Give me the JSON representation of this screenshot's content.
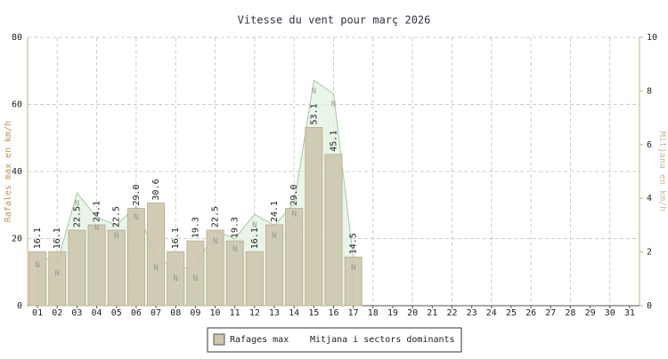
{
  "chart_data": {
    "type": "bar",
    "title": "Vitesse du vent pour marҫ 2026",
    "y_label": "Rafales max en km/h",
    "y2_label": "Mitjana en km/h",
    "categories": [
      "01",
      "02",
      "03",
      "04",
      "05",
      "06",
      "07",
      "08",
      "09",
      "10",
      "11",
      "12",
      "13",
      "14",
      "15",
      "16",
      "17",
      "18",
      "19",
      "20",
      "21",
      "22",
      "23",
      "24",
      "25",
      "26",
      "27",
      "28",
      "29",
      "30",
      "31"
    ],
    "series": [
      {
        "name": "Rafages max",
        "type": "bar",
        "color": "#cdc6ad",
        "values": [
          16.1,
          16.1,
          22.5,
          24.1,
          22.5,
          29.0,
          30.6,
          16.1,
          19.3,
          22.5,
          19.3,
          16.1,
          24.1,
          29.0,
          53.1,
          45.1,
          14.5,
          null,
          null,
          null,
          null,
          null,
          null,
          null,
          null,
          null,
          null,
          null,
          null,
          null,
          null
        ],
        "value_labels": [
          "16.1",
          "16.1",
          "22.5",
          "24.1",
          "22.5",
          "29.0",
          "30.6",
          "16.1",
          "19.3",
          "22.5",
          "19.3",
          "16.1",
          "24.1",
          "29.0",
          "53.1",
          "45.1",
          "14.5",
          null,
          null,
          null,
          null,
          null,
          null,
          null,
          null,
          null,
          null,
          null,
          null,
          null,
          null
        ]
      },
      {
        "name": "Mitjana i sectors dominants",
        "type": "area",
        "axis": "y2",
        "color": "#8fc08f",
        "values": [
          1.9,
          1.6,
          4.2,
          3.3,
          3.0,
          3.7,
          1.8,
          1.4,
          1.4,
          2.8,
          2.5,
          3.4,
          3.0,
          3.8,
          8.4,
          7.9,
          1.8,
          null,
          null,
          null,
          null,
          null,
          null,
          null,
          null,
          null,
          null,
          null,
          null,
          null,
          null
        ],
        "directions": [
          "N",
          "N",
          "N",
          "N",
          "N",
          "N",
          "N",
          "N",
          "N",
          "N",
          "N",
          "N",
          "N",
          "N",
          "N",
          "N",
          "N",
          null,
          null,
          null,
          null,
          null,
          null,
          null,
          null,
          null,
          null,
          null,
          null,
          null,
          null
        ]
      }
    ],
    "ylim": [
      0,
      80
    ],
    "yticks": [
      0,
      20,
      40,
      60,
      80
    ],
    "y2lim": [
      0,
      10
    ],
    "y2ticks": [
      0,
      2,
      4,
      6,
      8,
      10
    ],
    "grid": true
  }
}
